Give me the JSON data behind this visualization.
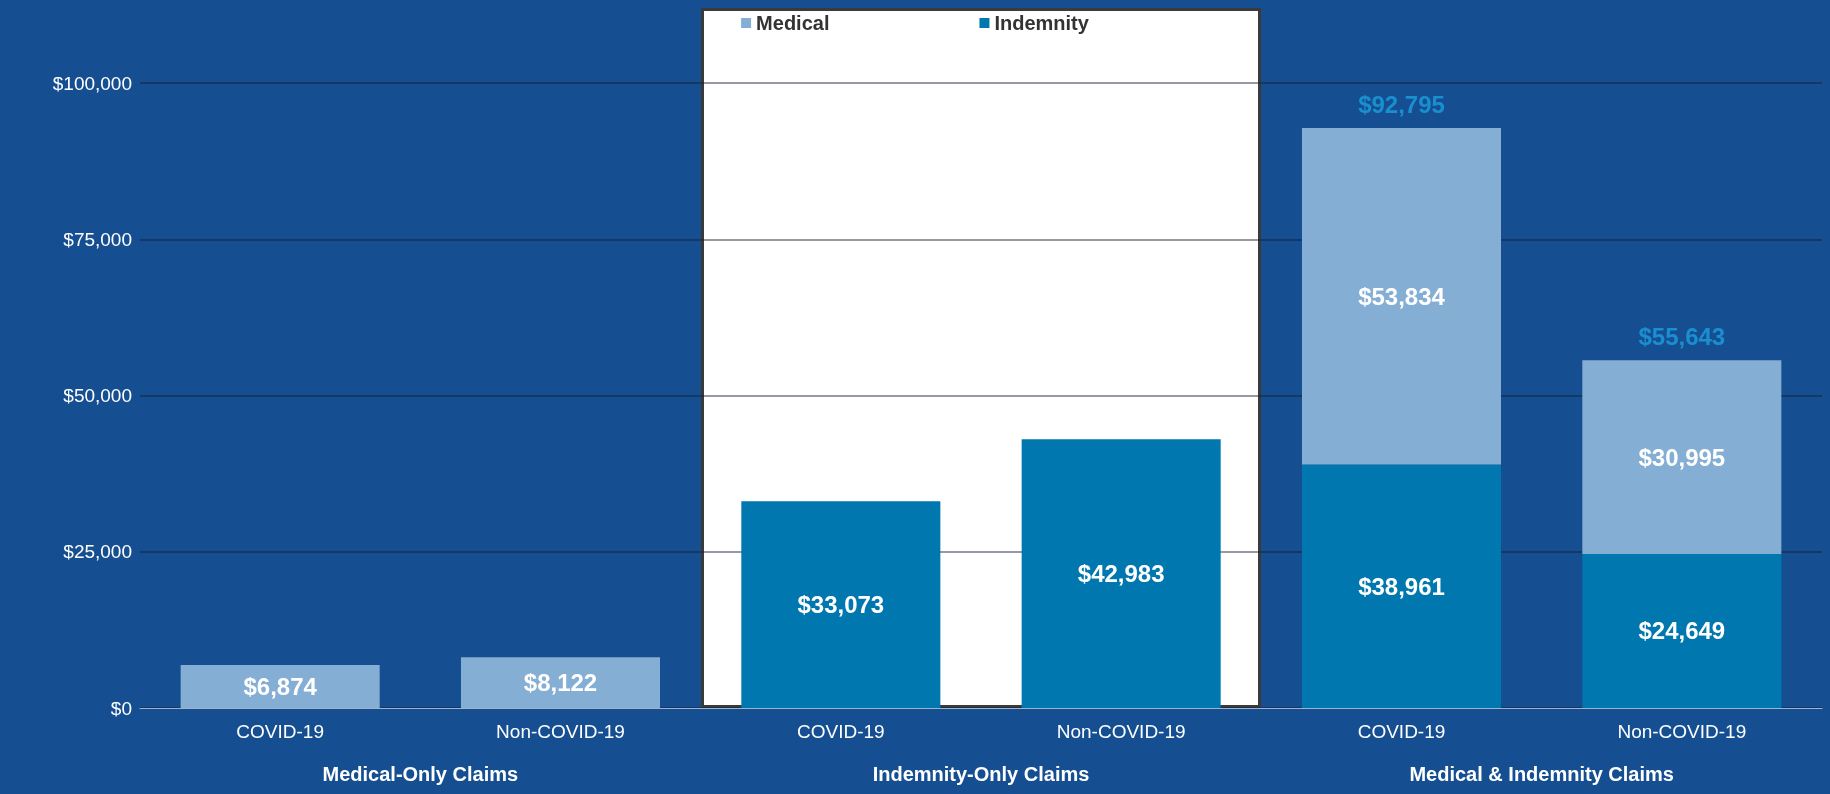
{
  "chart_data": {
    "type": "bar",
    "stacked": true,
    "categories": [
      "COVID-19",
      "Non-COVID-19",
      "COVID-19",
      "Non-COVID-19",
      "COVID-19",
      "Non-COVID-19"
    ],
    "series": [
      {
        "name": "Indemnity",
        "color": "#0077ae",
        "values": [
          null,
          null,
          33073,
          42983,
          38961,
          24649
        ],
        "value_labels": [
          null,
          null,
          "$33,073",
          "$42,983",
          "$38,961",
          "$24,649"
        ]
      },
      {
        "name": "Medical",
        "color": "#85aed4",
        "values": [
          6874,
          8122,
          null,
          null,
          53834,
          30995
        ],
        "value_labels": [
          "$6,874",
          "$8,122",
          null,
          null,
          "$53,834",
          "$30,995"
        ]
      }
    ],
    "totals": [
      null,
      null,
      null,
      null,
      "$92,795",
      "$55,643"
    ],
    "annotations": [
      "Medical-Only Claims",
      "Indemnity-Only Claims",
      "Medical & Indemnity Claims"
    ],
    "ylim": [
      0,
      100000
    ],
    "yticks": [
      {
        "value": 0,
        "label": "$0"
      },
      {
        "value": 25000,
        "label": "$25,000"
      },
      {
        "value": 50000,
        "label": "$50,000"
      },
      {
        "value": 75000,
        "label": "$75,000"
      },
      {
        "value": 100000,
        "label": "$100,000"
      }
    ],
    "grid": "y",
    "legend": "top"
  }
}
